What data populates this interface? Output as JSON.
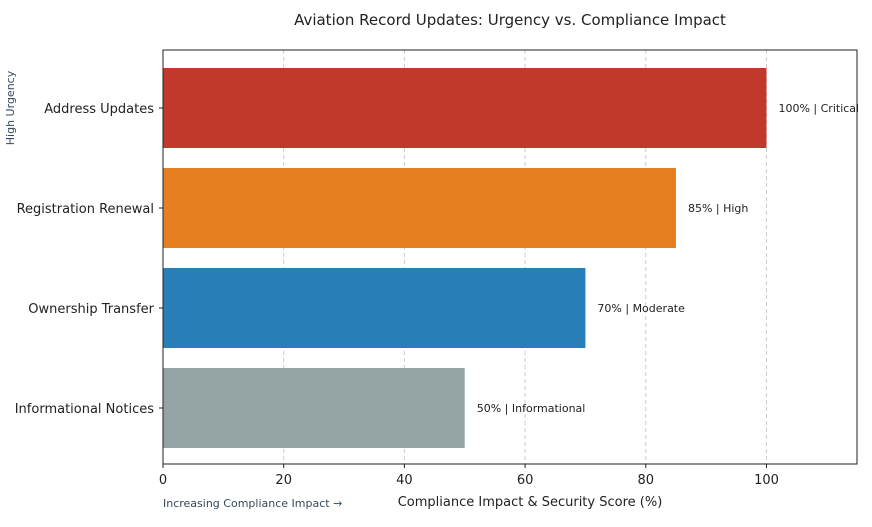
{
  "chart_data": {
    "type": "bar",
    "orientation": "horizontal",
    "title": "Aviation Record Updates: Urgency vs. Compliance Impact",
    "xlabel": "Compliance Impact & Security Score (%)",
    "ylabel": "",
    "categories": [
      "Address Updates",
      "Registration Renewal",
      "Ownership Transfer",
      "Informational Notices"
    ],
    "values": [
      100,
      85,
      70,
      50
    ],
    "data_labels": [
      "100% | Critical",
      "85% | High",
      "70% | Moderate",
      "50% | Informational"
    ],
    "colors": [
      "#c0392b",
      "#e67e22",
      "#2980b9",
      "#95a5a6"
    ],
    "xlim": [
      0,
      115
    ],
    "xticks": [
      0,
      20,
      40,
      60,
      80,
      100
    ],
    "grid": {
      "x": true,
      "y": false,
      "style": "dashed"
    },
    "annotations": [
      "High Urgency",
      "Increasing Compliance Impact →"
    ]
  }
}
